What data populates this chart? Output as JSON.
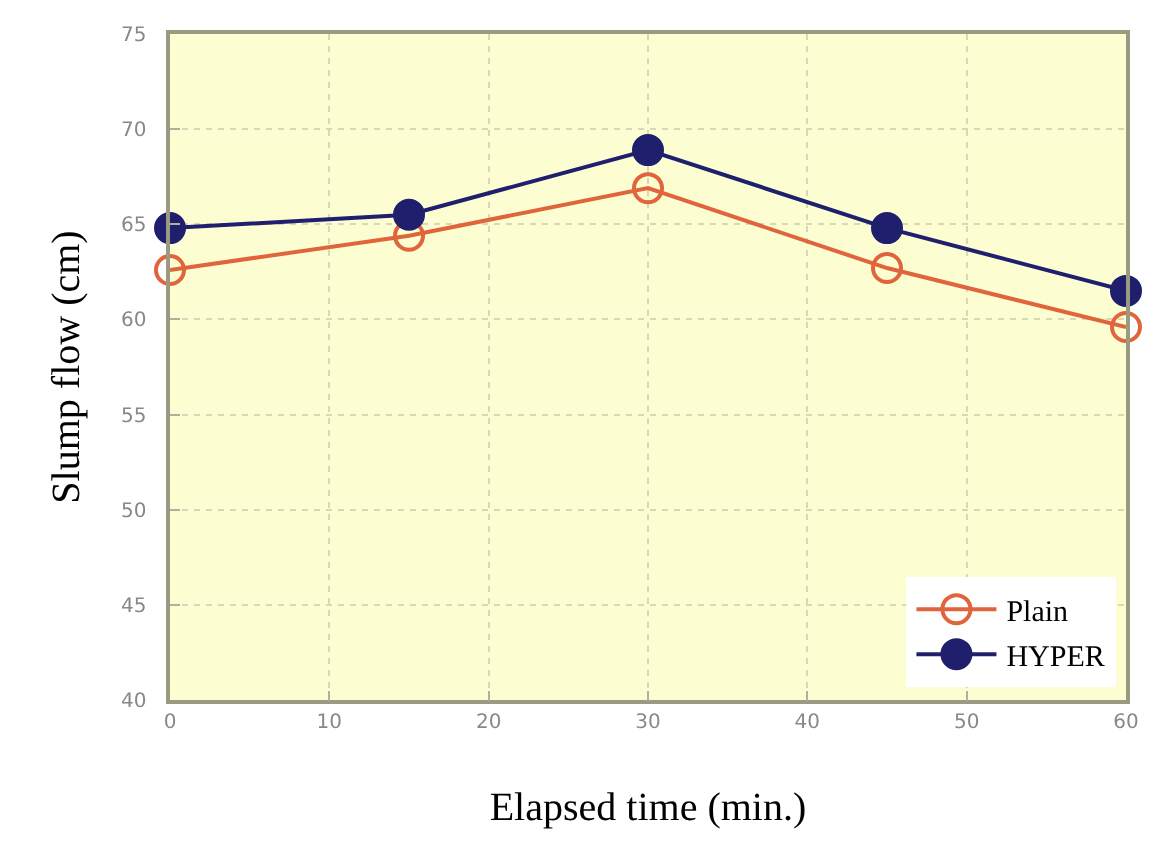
{
  "chart_data": {
    "type": "line",
    "xlabel": "Elapsed time (min.)",
    "ylabel": "Slump flow (cm)",
    "x": [
      0,
      15,
      30,
      45,
      60
    ],
    "series": [
      {
        "name": "Plain",
        "color": "#e0643c",
        "values": [
          62.6,
          64.4,
          66.9,
          62.7,
          59.6
        ],
        "marker": "circle-open"
      },
      {
        "name": "HYPER",
        "color": "#1f1f6e",
        "values": [
          64.8,
          65.5,
          68.9,
          64.8,
          61.5
        ],
        "marker": "circle"
      }
    ],
    "xlim": [
      0,
      60
    ],
    "xticks": [
      0,
      10,
      20,
      30,
      40,
      50,
      60
    ],
    "ylim": [
      40,
      75
    ],
    "yticks": [
      40,
      45,
      50,
      55,
      60,
      65,
      70,
      75
    ],
    "grid": true,
    "legend": "bottom right",
    "line_style": "solid"
  }
}
